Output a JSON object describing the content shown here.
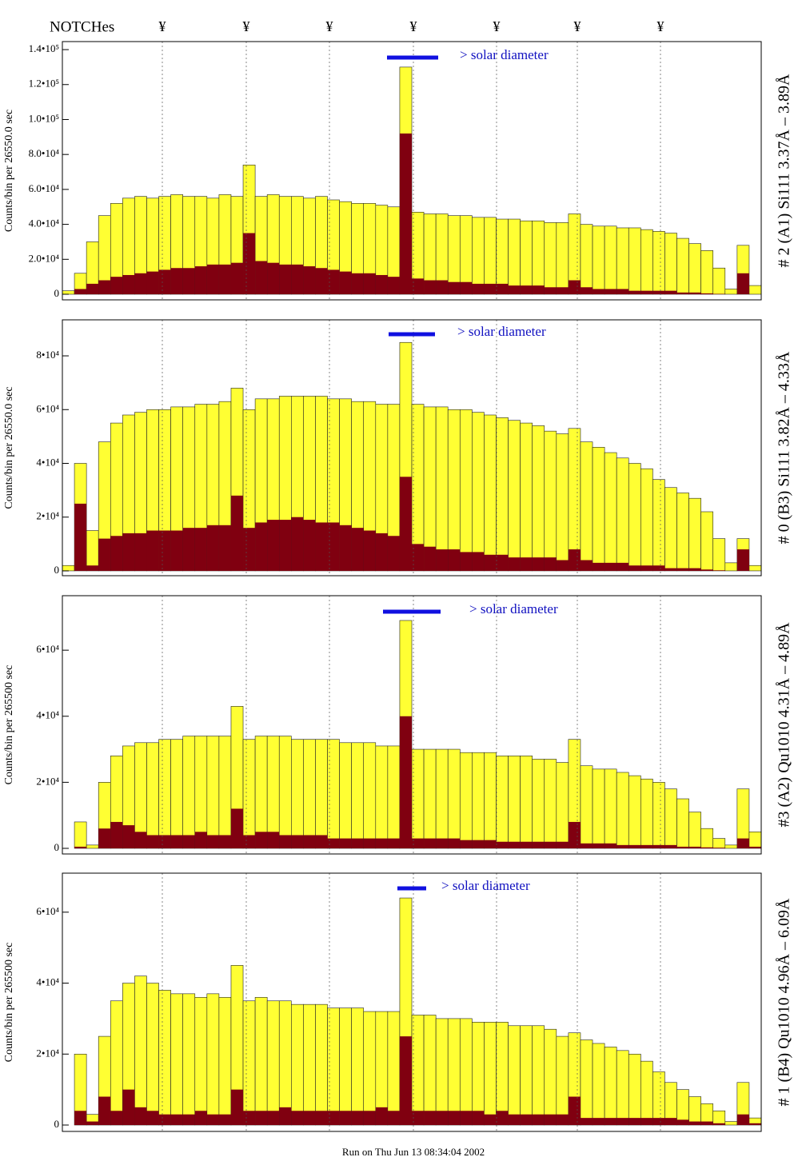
{
  "header": {
    "notch_title": "NOTCHes",
    "notches": [
      "¥",
      "¥",
      "¥",
      "¥",
      "¥",
      "¥",
      "¥"
    ]
  },
  "chart_data": [
    {
      "type": "bar",
      "ylabel": "Counts/bin per  26550.0 sec",
      "side_label": "# 2 (A1) Si111  3.37Å – 3.89Å",
      "annotation": "> solar diameter",
      "ylim": [
        -3200,
        144600
      ],
      "yticks": [
        0,
        {
          "value": 20000,
          "label": "2.0•10⁴"
        },
        {
          "value": 40000,
          "label": "4.0•10⁴"
        },
        {
          "value": 60000,
          "label": "6.0•10⁴"
        },
        {
          "value": 80000,
          "label": "8.0•10⁴"
        },
        {
          "value": 100000,
          "label": "1.0•10⁵"
        },
        {
          "value": 120000,
          "label": "1.2•10⁵"
        },
        {
          "value": 140000,
          "label": "1.4•10⁵"
        }
      ],
      "series": [
        {
          "color": "#ffff33",
          "values": [
            2000,
            12000,
            30000,
            45000,
            52000,
            55000,
            56000,
            55000,
            56000,
            57000,
            56000,
            56000,
            55000,
            57000,
            56000,
            74000,
            56000,
            57000,
            56000,
            56000,
            55000,
            56000,
            54000,
            53000,
            52000,
            52000,
            51000,
            50000,
            130000,
            47000,
            46000,
            46000,
            45000,
            45000,
            44000,
            44000,
            43000,
            43000,
            42000,
            42000,
            41000,
            41000,
            46000,
            40000,
            39000,
            39000,
            38000,
            38000,
            37000,
            36000,
            35000,
            32000,
            29000,
            25000,
            15000,
            3000,
            28000,
            5000
          ]
        },
        {
          "color": "#800010",
          "values": [
            0,
            3000,
            6000,
            8000,
            10000,
            11000,
            12000,
            13000,
            14000,
            15000,
            15000,
            16000,
            17000,
            17000,
            18000,
            35000,
            19000,
            18000,
            17000,
            17000,
            16000,
            15000,
            14000,
            13000,
            12000,
            12000,
            11000,
            10000,
            92000,
            9000,
            8000,
            8000,
            7000,
            7000,
            6000,
            6000,
            6000,
            5000,
            5000,
            5000,
            4000,
            4000,
            8000,
            4000,
            3000,
            3000,
            3000,
            2000,
            2000,
            2000,
            2000,
            1000,
            1000,
            500,
            200,
            0,
            12000,
            0
          ]
        }
      ]
    },
    {
      "type": "bar",
      "ylabel": "Counts/bin per  26550.0 sec",
      "side_label": "# 0 (B3) Si111  3.82Å – 4.33Å",
      "annotation": "> solar diameter",
      "ylim": [
        -1800,
        93400
      ],
      "yticks": [
        0,
        {
          "value": 20000,
          "label": "2•10⁴"
        },
        {
          "value": 40000,
          "label": "4•10⁴"
        },
        {
          "value": 60000,
          "label": "6•10⁴"
        },
        {
          "value": 80000,
          "label": "8•10⁴"
        }
      ],
      "series": [
        {
          "color": "#ffff33",
          "values": [
            2000,
            40000,
            15000,
            48000,
            55000,
            58000,
            59000,
            60000,
            60000,
            61000,
            61000,
            62000,
            62000,
            63000,
            68000,
            60000,
            64000,
            64000,
            65000,
            65000,
            65000,
            65000,
            64000,
            64000,
            63000,
            63000,
            62000,
            62000,
            85000,
            62000,
            61000,
            61000,
            60000,
            60000,
            59000,
            58000,
            57000,
            56000,
            55000,
            54000,
            52000,
            51000,
            53000,
            48000,
            46000,
            44000,
            42000,
            40000,
            38000,
            34000,
            31000,
            29000,
            27000,
            22000,
            12000,
            3000,
            12000,
            2000
          ]
        },
        {
          "color": "#800010",
          "values": [
            0,
            25000,
            2000,
            12000,
            13000,
            14000,
            14000,
            15000,
            15000,
            15000,
            16000,
            16000,
            17000,
            17000,
            28000,
            16000,
            18000,
            19000,
            19000,
            20000,
            19000,
            18000,
            18000,
            17000,
            16000,
            15000,
            14000,
            13000,
            35000,
            10000,
            9000,
            8000,
            8000,
            7000,
            7000,
            6000,
            6000,
            5000,
            5000,
            5000,
            5000,
            4000,
            8000,
            4000,
            3000,
            3000,
            3000,
            2000,
            2000,
            2000,
            1000,
            1000,
            1000,
            500,
            200,
            0,
            8000,
            0
          ]
        }
      ]
    },
    {
      "type": "bar",
      "ylabel": "Counts/bin per  265500 sec",
      "side_label": "#3 (A2) Qu1010  4.31Å – 4.89Å",
      "annotation": "> solar diameter",
      "ylim": [
        -1700,
        76500
      ],
      "yticks": [
        0,
        {
          "value": 20000,
          "label": "2•10⁴"
        },
        {
          "value": 40000,
          "label": "4•10⁴"
        },
        {
          "value": 60000,
          "label": "6•10⁴"
        }
      ],
      "series": [
        {
          "color": "#ffff33",
          "values": [
            0,
            8000,
            1000,
            20000,
            28000,
            31000,
            32000,
            32000,
            33000,
            33000,
            34000,
            34000,
            34000,
            34000,
            43000,
            33000,
            34000,
            34000,
            34000,
            33000,
            33000,
            33000,
            33000,
            32000,
            32000,
            32000,
            31000,
            31000,
            69000,
            30000,
            30000,
            30000,
            30000,
            29000,
            29000,
            29000,
            28000,
            28000,
            28000,
            27000,
            27000,
            26000,
            33000,
            25000,
            24000,
            24000,
            23000,
            22000,
            21000,
            20000,
            18000,
            15000,
            11000,
            6000,
            3000,
            1000,
            18000,
            5000
          ]
        },
        {
          "color": "#800010",
          "values": [
            0,
            500,
            0,
            6000,
            8000,
            7000,
            5000,
            4000,
            4000,
            4000,
            4000,
            5000,
            4000,
            4000,
            12000,
            4000,
            5000,
            5000,
            4000,
            4000,
            4000,
            4000,
            3000,
            3000,
            3000,
            3000,
            3000,
            3000,
            40000,
            3000,
            3000,
            3000,
            3000,
            2500,
            2500,
            2500,
            2000,
            2000,
            2000,
            2000,
            2000,
            2000,
            8000,
            1500,
            1500,
            1500,
            1000,
            1000,
            1000,
            1000,
            1000,
            500,
            500,
            300,
            200,
            0,
            3000,
            500
          ]
        }
      ]
    },
    {
      "type": "bar",
      "ylabel": "Counts/bin per  265500 sec",
      "side_label": "# 1 (B4) Qu1010 4.96Å – 6.09Å",
      "annotation": "> solar diameter",
      "ylim": [
        -1800,
        71000
      ],
      "yticks": [
        0,
        {
          "value": 20000,
          "label": "2•10⁴"
        },
        {
          "value": 40000,
          "label": "4•10⁴"
        },
        {
          "value": 60000,
          "label": "6•10⁴"
        }
      ],
      "series": [
        {
          "color": "#ffff33",
          "values": [
            0,
            20000,
            3000,
            25000,
            35000,
            40000,
            42000,
            40000,
            38000,
            37000,
            37000,
            36000,
            37000,
            36000,
            45000,
            35000,
            36000,
            35000,
            35000,
            34000,
            34000,
            34000,
            33000,
            33000,
            33000,
            32000,
            32000,
            32000,
            64000,
            31000,
            31000,
            30000,
            30000,
            30000,
            29000,
            29000,
            29000,
            28000,
            28000,
            28000,
            27000,
            25000,
            26000,
            24000,
            23000,
            22000,
            21000,
            20000,
            18000,
            15000,
            12000,
            10000,
            8000,
            6000,
            4000,
            1000,
            12000,
            2000
          ]
        },
        {
          "color": "#800010",
          "values": [
            0,
            4000,
            1000,
            8000,
            4000,
            10000,
            5000,
            4000,
            3000,
            3000,
            3000,
            4000,
            3000,
            3000,
            10000,
            4000,
            4000,
            4000,
            5000,
            4000,
            4000,
            4000,
            4000,
            4000,
            4000,
            4000,
            5000,
            4000,
            25000,
            4000,
            4000,
            4000,
            4000,
            4000,
            4000,
            3000,
            4000,
            3000,
            3000,
            3000,
            3000,
            3000,
            8000,
            2000,
            2000,
            2000,
            2000,
            2000,
            2000,
            2000,
            2000,
            1500,
            1000,
            1000,
            500,
            0,
            3000,
            500
          ]
        }
      ]
    }
  ],
  "footer": "Run on Thu Jun 13 08:34:04 2002"
}
